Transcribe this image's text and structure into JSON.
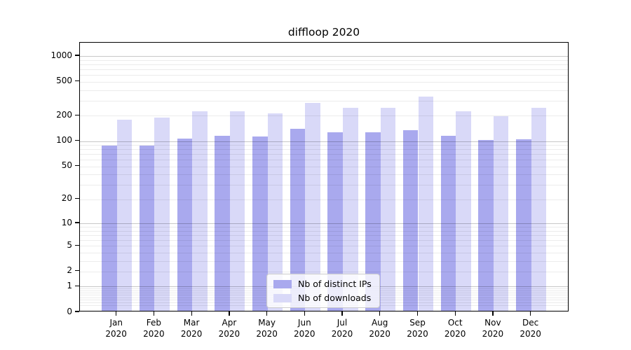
{
  "chart_data": {
    "type": "bar",
    "title": "diffloop 2020",
    "categories": [
      "Jan",
      "Feb",
      "Mar",
      "Apr",
      "May",
      "Jun",
      "Jul",
      "Aug",
      "Sep",
      "Oct",
      "Nov",
      "Dec"
    ],
    "year_label": "2020",
    "series": [
      {
        "name": "Nb of distinct IPs",
        "color": "#a9a9ee",
        "values": [
          85,
          85,
          104,
          111,
          110,
          135,
          122,
          123,
          129,
          111,
          100,
          101
        ]
      },
      {
        "name": "Nb of downloads",
        "color": "#d9d9f8",
        "values": [
          171,
          182,
          218,
          216,
          205,
          273,
          240,
          240,
          325,
          217,
          190,
          238
        ]
      }
    ],
    "yticks": [
      1000,
      500,
      200,
      100,
      50,
      20,
      10,
      5,
      2,
      1,
      0
    ],
    "ytick_labels": [
      "1000",
      "500",
      "200",
      "100",
      "50",
      "20",
      "10",
      "5",
      "2",
      "1",
      "0"
    ],
    "scale": "log1p",
    "ylim": [
      0,
      1433
    ],
    "grid": "horizontal",
    "legend_position": "lower center",
    "colors": {
      "frame": "#000000",
      "grid_minor": "#ebebeb",
      "grid_major": "#c6c6c6",
      "background": "#ffffff"
    }
  }
}
